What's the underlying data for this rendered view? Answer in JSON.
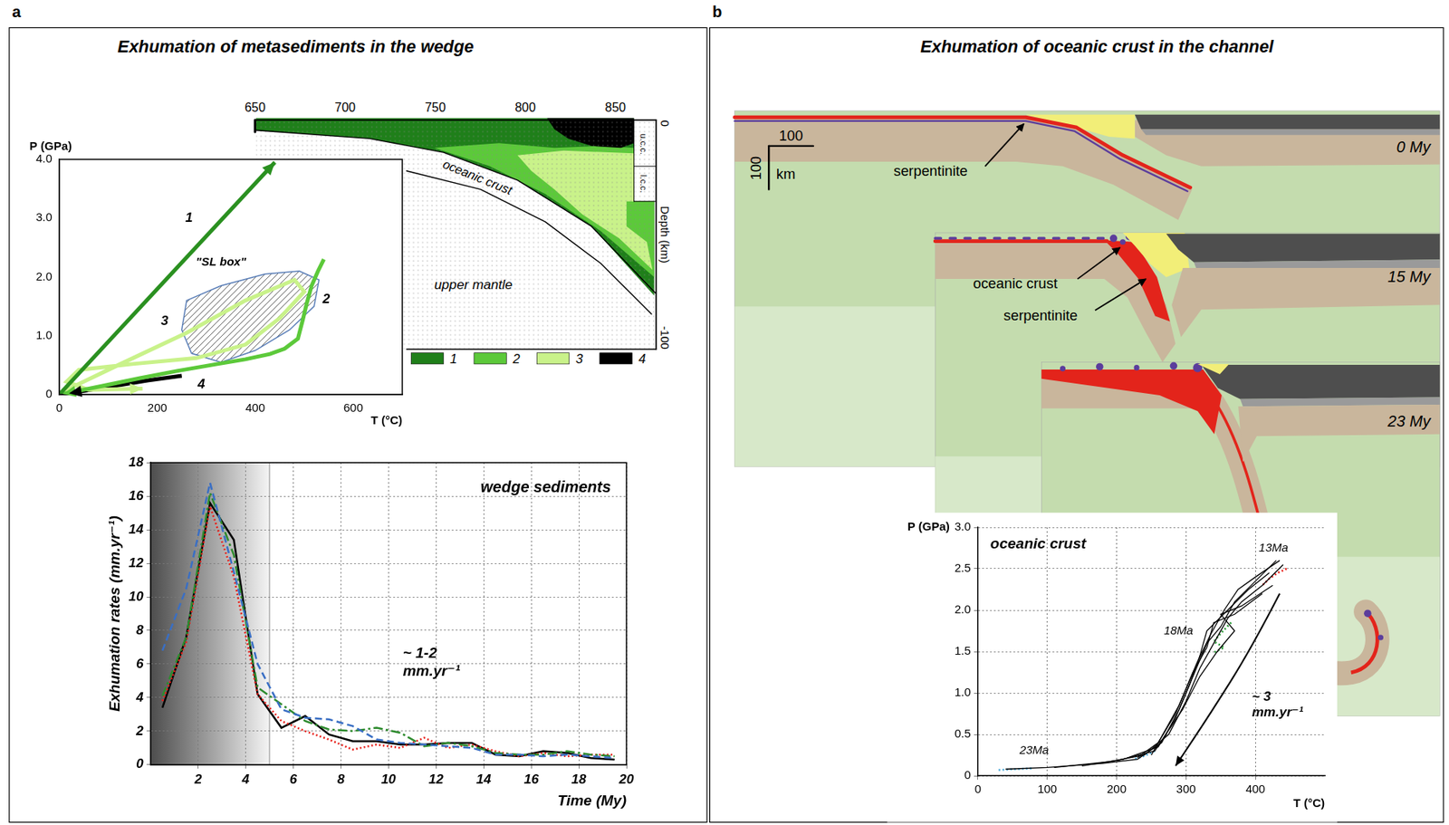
{
  "panels": [
    {
      "letter": "a",
      "title": "Exhumation of metasediments in the wedge"
    },
    {
      "letter": "b",
      "title": "Exhumation of oceanic crust in the channel"
    }
  ],
  "cross_section": {
    "top_ticks": [
      650,
      700,
      750,
      800,
      850
    ],
    "depth_label": "Depth (km)",
    "depth_ticks": [
      0,
      -100
    ],
    "layers": [
      "u.c.c.",
      "l.c.c."
    ],
    "labels": [
      "oceanic crust",
      "upper mantle"
    ],
    "legend": [
      {
        "label": "1",
        "color": "#1f7f1a"
      },
      {
        "label": "2",
        "color": "#5cc93a"
      },
      {
        "label": "3",
        "color": "#c9f28a"
      },
      {
        "label": "4",
        "color": "#000000"
      }
    ]
  },
  "model_snapshots": {
    "frames": [
      {
        "time": "0 My",
        "labels": [
          "serpentinite"
        ]
      },
      {
        "time": "15 My",
        "labels": [
          "oceanic crust",
          "serpentinite"
        ]
      },
      {
        "time": "23 My"
      }
    ],
    "scale_bar": {
      "x": 100,
      "y": 100,
      "unit": "km"
    }
  },
  "chart_data": [
    {
      "type": "line",
      "x_label": "T (°C)",
      "y_label": "P (GPa)",
      "xlim": [
        0,
        700
      ],
      "xticks": [
        0,
        200,
        400,
        600
      ],
      "ylim": [
        0,
        4
      ],
      "yticks": [
        0,
        {
          "value": 1,
          "label": "1.0"
        },
        {
          "value": 2,
          "label": "2.0"
        },
        {
          "value": 3,
          "label": "3.0"
        },
        {
          "value": 4,
          "label": "4.0"
        }
      ],
      "grid": false,
      "series": [
        {
          "name": "1",
          "color": "#2a9020",
          "line_style": "solid",
          "marker": "arrow",
          "x": [
            0,
            440
          ],
          "values": [
            0,
            3.95
          ],
          "label_at": [
            265,
            3.0
          ]
        },
        {
          "name": "2",
          "color": "#5cc93a",
          "line_style": "solid",
          "marker": "arrow",
          "x": [
            540,
            528,
            515,
            505,
            497,
            487,
            460,
            430,
            380,
            316,
            240,
            165,
            90,
            8
          ],
          "values": [
            2.3,
            2.1,
            1.85,
            1.55,
            1.27,
            0.95,
            0.78,
            0.69,
            0.6,
            0.51,
            0.4,
            0.28,
            0.15,
            0.01
          ],
          "label_at": [
            545,
            1.62
          ]
        },
        {
          "name": "3",
          "color": "#c9f28a",
          "line_style": "solid",
          "marker": "arrow",
          "x": [
            0,
            120,
            260,
            380,
            480,
            500,
            450,
            380,
            280,
            150,
            40,
            15,
            60,
            170
          ],
          "values": [
            0.02,
            0.5,
            1.05,
            1.6,
            1.95,
            1.75,
            1.3,
            0.85,
            0.62,
            0.52,
            0.42,
            0.22,
            0.08,
            0.1
          ],
          "label_at": [
            215,
            1.25
          ]
        },
        {
          "name": "4",
          "color": "#000000",
          "line_style": "solid",
          "marker": "arrow",
          "x": [
            250,
            180,
            100,
            20
          ],
          "values": [
            0.32,
            0.24,
            0.13,
            0.02
          ],
          "label_at": [
            290,
            0.17
          ]
        }
      ],
      "regions": [
        {
          "label": "\"SL box\"",
          "x": [
            260,
            330,
            420,
            490,
            530,
            520,
            470,
            400,
            330,
            270,
            250
          ],
          "y": [
            1.6,
            1.85,
            2.05,
            2.1,
            1.95,
            1.5,
            1.1,
            0.75,
            0.55,
            0.7,
            1.1
          ],
          "label_at": [
            330,
            2.25
          ]
        }
      ]
    },
    {
      "type": "line",
      "title": "wedge sediments",
      "x_label": "Time (My)",
      "y_label": "Exhumation rates (mm.yr⁻¹)",
      "x": [
        0.5,
        1.5,
        2.5,
        3.5,
        4.5,
        5.5,
        6.5,
        7.5,
        8.5,
        9.5,
        10.5,
        11.5,
        12.5,
        13.5,
        14.5,
        15.5,
        16.5,
        17.5,
        18.5,
        19.5
      ],
      "xlim": [
        0,
        20
      ],
      "xticks": [
        2,
        4,
        6,
        8,
        10,
        12,
        14,
        16,
        18,
        20
      ],
      "ylim": [
        0,
        18
      ],
      "yticks": [
        0,
        2,
        4,
        6,
        8,
        10,
        12,
        14,
        16,
        18
      ],
      "grid": true,
      "shaded_x": [
        0,
        5
      ],
      "series": [
        {
          "color": "#3a6fc4",
          "line_style": "dashed",
          "values": [
            6.8,
            10.5,
            16.8,
            11.5,
            6.0,
            3.3,
            2.8,
            2.7,
            2.3,
            1.5,
            1.3,
            1.2,
            1.1,
            1.0,
            0.6,
            0.6,
            0.5,
            0.6,
            0.5,
            0.4
          ]
        },
        {
          "color": "#2e8b2e",
          "line_style": "dashdot",
          "values": [
            4.1,
            7.6,
            16.2,
            12.5,
            4.6,
            3.6,
            2.6,
            2.1,
            2.0,
            2.2,
            1.9,
            1.1,
            1.3,
            1.1,
            0.7,
            0.6,
            0.6,
            0.8,
            0.6,
            0.5
          ]
        },
        {
          "color": "#e8201a",
          "line_style": "dotted",
          "values": [
            3.8,
            7.3,
            15.4,
            11.2,
            4.2,
            2.6,
            2.0,
            1.5,
            0.9,
            1.2,
            1.0,
            1.6,
            1.0,
            1.2,
            0.8,
            0.5,
            0.7,
            0.5,
            0.6,
            0.6
          ]
        },
        {
          "color": "#000000",
          "line_style": "solid",
          "values": [
            3.4,
            7.6,
            15.6,
            13.4,
            4.2,
            2.2,
            2.9,
            1.8,
            1.4,
            1.4,
            1.2,
            1.2,
            1.3,
            1.3,
            0.6,
            0.5,
            0.8,
            0.7,
            0.4,
            0.3
          ]
        }
      ],
      "annotations": [
        {
          "lines": [
            "~ 1-2",
            "mm.yr⁻¹"
          ],
          "x": 10.6,
          "y": 6.6
        }
      ]
    },
    {
      "type": "line",
      "title": "oceanic crust",
      "x_label": "T (°C)",
      "y_label": "P (GPa)",
      "xlim": [
        0,
        500
      ],
      "xticks": [
        0,
        100,
        200,
        300,
        400
      ],
      "ylim": [
        0,
        3
      ],
      "yticks": [
        0,
        0.5,
        {
          "value": 1,
          "label": "1.0"
        },
        1.5,
        {
          "value": 2,
          "label": "2.0"
        },
        2.5,
        {
          "value": 3,
          "label": "3.0"
        }
      ],
      "grid": true,
      "series": [
        {
          "color": "#000000",
          "line_style": "solid",
          "x": [
            430,
            400,
            370,
            350,
            330,
            310,
            290,
            265,
            230,
            180,
            100,
            40
          ],
          "values": [
            2.6,
            2.35,
            2.1,
            1.8,
            1.6,
            1.2,
            0.8,
            0.4,
            0.2,
            0.15,
            0.1,
            0.08
          ]
        },
        {
          "color": "#000000",
          "line_style": "solid",
          "x": [
            440,
            410,
            380,
            360,
            340,
            320,
            300,
            275,
            240,
            190,
            110
          ],
          "values": [
            2.55,
            2.3,
            2.1,
            1.9,
            1.6,
            1.3,
            0.9,
            0.5,
            0.25,
            0.17,
            0.1
          ]
        },
        {
          "color": "#000000",
          "line_style": "solid",
          "x": [
            420,
            390,
            360,
            330,
            320,
            305,
            285,
            260,
            210,
            150
          ],
          "values": [
            2.45,
            2.25,
            2.0,
            1.75,
            1.45,
            1.1,
            0.7,
            0.35,
            0.2,
            0.12
          ]
        },
        {
          "color": "#000000",
          "line_style": "solid",
          "x": [
            425,
            380,
            350,
            370,
            345,
            320,
            295,
            255,
            200
          ],
          "values": [
            2.3,
            2.05,
            1.95,
            1.75,
            1.5,
            1.2,
            0.8,
            0.3,
            0.18
          ]
        },
        {
          "color": "#000000",
          "line_style": "solid",
          "x": [
            435,
            400,
            375,
            355,
            335,
            315,
            290,
            250
          ],
          "values": [
            2.6,
            2.4,
            2.25,
            2.0,
            1.7,
            1.35,
            0.85,
            0.25
          ]
        },
        {
          "color": "#000000",
          "line_style": "solid",
          "x": [
            410,
            370,
            340,
            330,
            310,
            285,
            260,
            230
          ],
          "values": [
            2.2,
            1.95,
            1.85,
            1.55,
            1.25,
            0.75,
            0.4,
            0.22
          ]
        },
        {
          "color": "#e8201a",
          "line_style": "dotted",
          "x": [
            445,
            432,
            420,
            410
          ],
          "values": [
            2.5,
            2.45,
            2.38,
            2.3
          ]
        },
        {
          "color": "#2e9a3a",
          "line_style": "dotted",
          "x": [
            365,
            350,
            340,
            355,
            338
          ],
          "values": [
            1.85,
            1.72,
            1.62,
            1.55,
            1.48
          ]
        },
        {
          "color": "#4aa8d8",
          "line_style": "dotted",
          "x": [
            255,
            240,
            225
          ],
          "values": [
            0.3,
            0.24,
            0.2
          ]
        },
        {
          "color": "#4aa8d8",
          "line_style": "dotted",
          "x": [
            30,
            55,
            80
          ],
          "values": [
            0.07,
            0.08,
            0.09
          ]
        }
      ],
      "annotations": [
        {
          "lines": [
            "13Ma"
          ],
          "x": 405,
          "y": 2.75
        },
        {
          "lines": [
            "18Ma"
          ],
          "x": 268,
          "y": 1.75
        },
        {
          "lines": [
            "23Ma"
          ],
          "x": 60,
          "y": 0.3
        }
      ],
      "arrows": [
        {
          "x": [
            435,
            395,
            335,
            285
          ],
          "y": [
            2.2,
            1.55,
            0.75,
            0.12
          ],
          "label": [
            "~ 3",
            "mm.yr⁻¹"
          ],
          "label_at": [
            395,
            0.95
          ]
        }
      ]
    }
  ]
}
